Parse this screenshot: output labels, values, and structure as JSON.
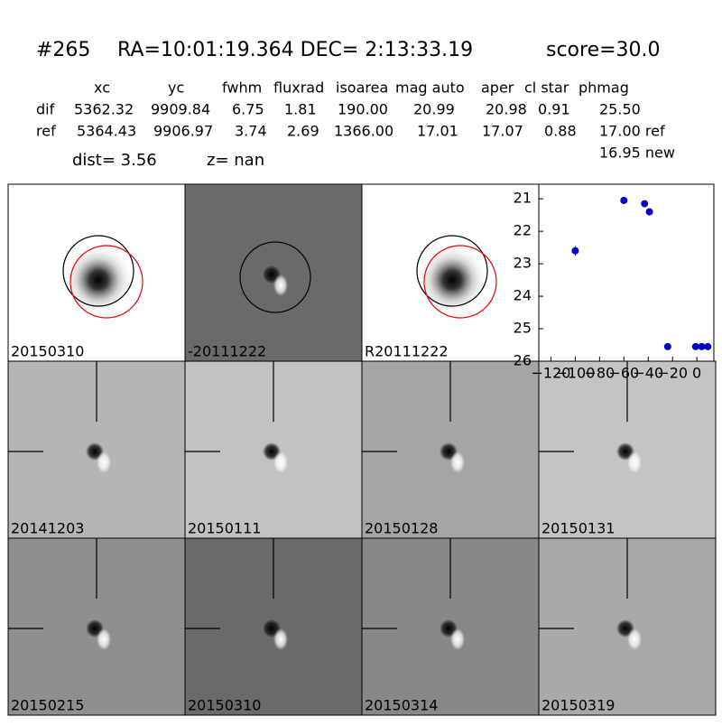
{
  "header": {
    "id": "#265",
    "coords": "RA=10:01:19.364 DEC= 2:13:33.19",
    "score": "score=30.0"
  },
  "table": {
    "columns": [
      "xc",
      "yc",
      "fwhm",
      "fluxrad",
      "isoarea",
      "mag auto",
      "aper",
      "cl star",
      "phmag"
    ],
    "rows": [
      [
        "dif",
        "5362.32",
        "9909.84",
        "6.75",
        "1.81",
        "190.00",
        "20.99",
        "20.98",
        "0.91",
        "25.50"
      ],
      [
        "ref",
        "5364.43",
        "9906.97",
        "3.74",
        "2.69",
        "1366.00",
        "17.01",
        "17.07",
        "0.88",
        "17.00 ref"
      ]
    ],
    "extra": "16.95 new"
  },
  "dist": "dist=  3.56",
  "z": "z=   nan",
  "panels": [
    "20150310",
    "-20111222",
    "R20111222",
    "20141203",
    "20150111",
    "20150128",
    "20150131",
    "20150215",
    "20150310",
    "20150314",
    "20150319"
  ],
  "chart_data": {
    "type": "scatter",
    "color": "#0000cc",
    "x": [
      -100,
      -60,
      -43,
      -39,
      -24,
      -1,
      4,
      9
    ],
    "values": [
      22.6,
      21.05,
      21.15,
      21.4,
      25.55,
      25.55,
      25.55,
      25.55
    ],
    "errors": [
      0.15,
      0.05,
      0.05,
      0.05,
      0.08,
      0.05,
      0.05,
      0.05
    ],
    "xlim": [
      -130,
      14
    ],
    "ylim": [
      20.55,
      26
    ],
    "y_inverted": true,
    "xticks": [
      {
        "value": -120,
        "label": "−120"
      },
      {
        "value": -100,
        "label": "−100"
      },
      {
        "value": -80,
        "label": "−80"
      },
      {
        "value": -60,
        "label": "−60"
      },
      {
        "value": -40,
        "label": "−40"
      },
      {
        "value": -20,
        "label": "−20"
      },
      0
    ],
    "yticks": [
      21,
      22,
      23,
      24,
      25,
      26
    ]
  }
}
